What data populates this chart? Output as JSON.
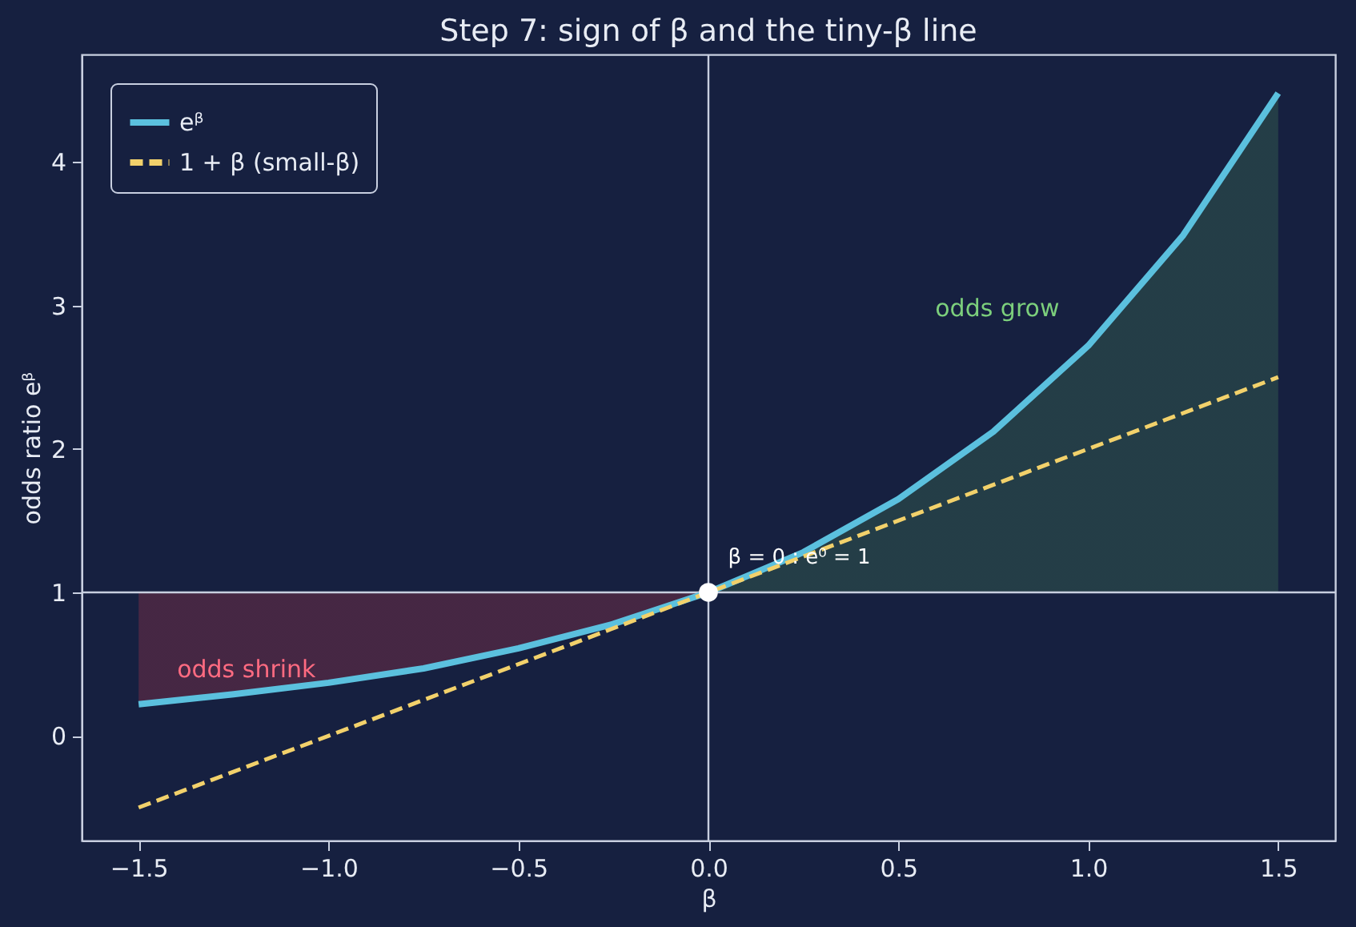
{
  "chart_data": {
    "type": "line",
    "title": "Step 7: sign of β and the tiny-β line",
    "xlabel": "β",
    "ylabel": "odds ratio eᵝ",
    "xlim": [
      -1.65,
      1.65
    ],
    "ylim": [
      -0.73,
      4.75
    ],
    "xticks": [
      {
        "value": -1.5,
        "label": "−1.5"
      },
      {
        "value": -1.0,
        "label": "−1.0"
      },
      {
        "value": -0.5,
        "label": "−0.5"
      },
      {
        "value": 0,
        "label": "0.0"
      },
      {
        "value": 0.5,
        "label": "0.5"
      },
      {
        "value": 1.0,
        "label": "1.0"
      },
      {
        "value": 1.5,
        "label": "1.5"
      }
    ],
    "yticks": [
      0,
      1,
      2,
      3,
      4
    ],
    "grid": false,
    "legend": "top left",
    "marker": "none",
    "series": [
      {
        "type": "line",
        "name": "eᵝ",
        "color": "#5bc0de",
        "line_style": "solid",
        "x": [
          -1.5,
          -1.25,
          -1.0,
          -0.75,
          -0.5,
          -0.25,
          0,
          0.25,
          0.5,
          0.75,
          1.0,
          1.25,
          1.5
        ],
        "values": [
          0.22,
          0.29,
          0.37,
          0.47,
          0.61,
          0.78,
          1.0,
          1.28,
          1.65,
          2.12,
          2.72,
          3.49,
          4.48
        ],
        "lower": [
          0.22,
          0.29,
          0.37,
          0.47,
          0.61,
          0.78,
          1.0,
          1,
          1,
          1,
          1,
          1,
          1
        ],
        "upper": [
          1,
          1,
          1,
          1,
          1,
          1,
          1.0,
          1.28,
          1.65,
          2.12,
          2.72,
          3.49,
          4.48
        ]
      },
      {
        "type": "line",
        "name": "1 + β (small-β)",
        "color": "#f2d16b",
        "line_style": "dashed",
        "x": [
          -1.5,
          1.5
        ],
        "values": [
          -0.5,
          2.5
        ]
      },
      {
        "type": "scatter",
        "color": "#ffffff",
        "marker": "circle",
        "x": [
          0
        ],
        "values": [
          1
        ]
      }
    ],
    "ref_lines": [
      {
        "axis": "y",
        "value": 1,
        "color": "#c8cfe0"
      },
      {
        "axis": "x",
        "value": 0,
        "color": "#c8cfe0"
      }
    ],
    "annotations": [
      "odds grow",
      "odds shrink",
      "β = 0 : e⁰ = 1"
    ]
  }
}
